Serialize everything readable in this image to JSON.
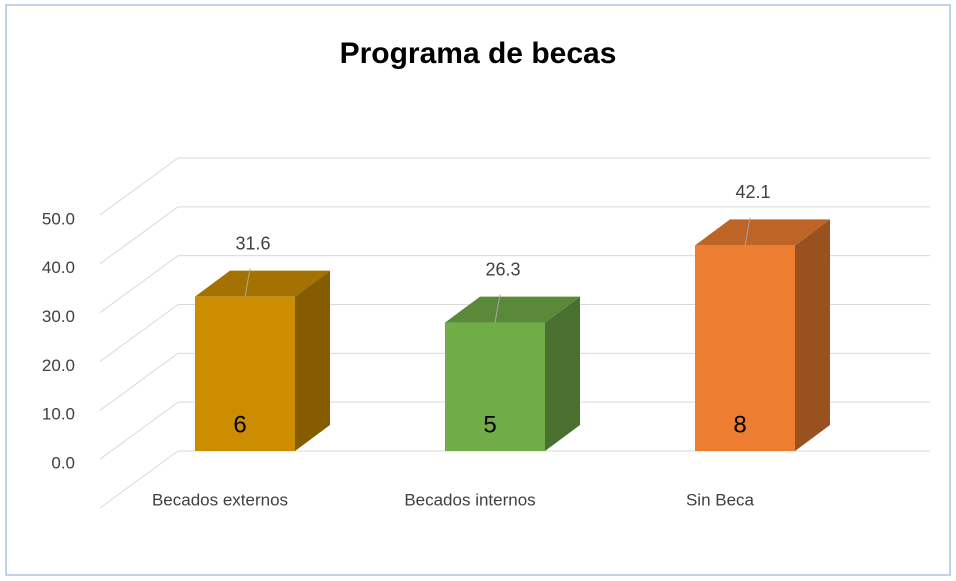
{
  "chart_data": {
    "type": "bar3d",
    "title": "Programa de becas",
    "categories": [
      "Becados externos",
      "Becados internos",
      "Sin Beca"
    ],
    "values": [
      31.6,
      26.3,
      42.1
    ],
    "counts": [
      6,
      5,
      8
    ],
    "colors": [
      "#cc8e00",
      "#70ad47",
      "#ed7d31"
    ],
    "ylim": [
      0,
      60
    ],
    "yticks": [
      {
        "value": 0,
        "label": "0.0"
      },
      {
        "value": 10,
        "label": "10.0"
      },
      {
        "value": 20,
        "label": "20.0"
      },
      {
        "value": 30,
        "label": "30.0"
      },
      {
        "value": 40,
        "label": "40.0"
      },
      {
        "value": 50,
        "label": "50.0"
      }
    ],
    "grid": true
  }
}
